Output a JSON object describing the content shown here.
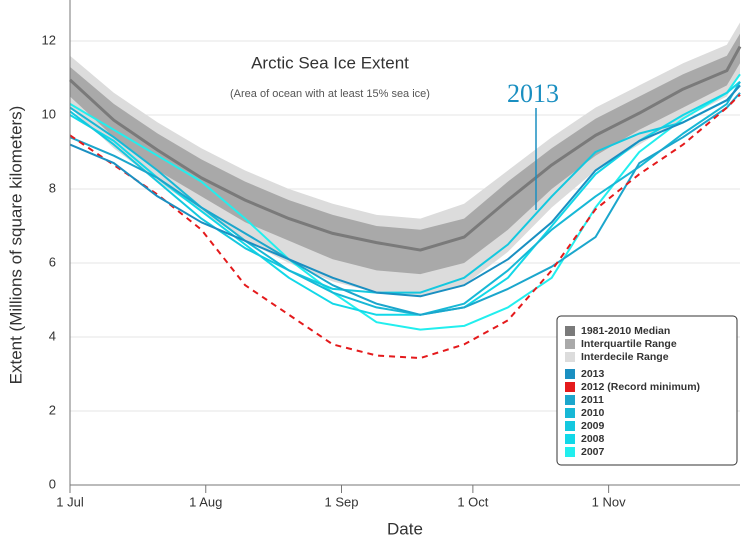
{
  "chart_data": {
    "type": "line",
    "title": "Arctic Sea Ice Extent",
    "subtitle": "(Area of ocean with at least 15% sea ice)",
    "x_label": "Date",
    "y_label": "Extent (Millions of square kilometers)",
    "annotation": "2013",
    "x": [
      0,
      10,
      20,
      30,
      40,
      50,
      60,
      70,
      80,
      90,
      100,
      110,
      120,
      130,
      140,
      150,
      153
    ],
    "xlim": [
      0,
      153
    ],
    "xticks": [
      {
        "value": 0,
        "label": "1 Jul"
      },
      {
        "value": 31,
        "label": "1 Aug"
      },
      {
        "value": 62,
        "label": "1 Sep"
      },
      {
        "value": 92,
        "label": "1 Oct"
      },
      {
        "value": 123,
        "label": "1 Nov"
      }
    ],
    "ylim": [
      0,
      13
    ],
    "yticks": [
      0,
      2,
      4,
      6,
      8,
      10,
      12
    ],
    "grid": true,
    "legend_position": "lower right",
    "bands": [
      {
        "name": "Interdecile Range",
        "color": "#dcdcdc",
        "low": [
          10.2,
          9.1,
          8.2,
          7.4,
          6.6,
          6.0,
          5.5,
          5.2,
          5.1,
          5.4,
          6.3,
          7.5,
          8.5,
          9.2,
          9.9,
          10.5,
          11.1
        ],
        "high": [
          11.6,
          10.6,
          9.8,
          9.1,
          8.5,
          8.0,
          7.6,
          7.3,
          7.2,
          7.6,
          8.5,
          9.4,
          10.2,
          10.8,
          11.4,
          11.9,
          12.5
        ]
      },
      {
        "name": "Interquartile Range",
        "color": "#a9a9a9",
        "low": [
          10.5,
          9.4,
          8.5,
          7.8,
          7.1,
          6.6,
          6.1,
          5.8,
          5.7,
          6.0,
          6.9,
          8.0,
          8.9,
          9.6,
          10.2,
          10.8,
          11.4
        ],
        "high": [
          11.3,
          10.3,
          9.5,
          8.8,
          8.2,
          7.7,
          7.3,
          7.0,
          6.9,
          7.2,
          8.2,
          9.1,
          9.9,
          10.5,
          11.1,
          11.6,
          12.2
        ]
      }
    ],
    "median": {
      "name": "1981-2010 Median",
      "color": "#7a7a7a",
      "values": [
        10.95,
        9.86,
        9.05,
        8.3,
        7.7,
        7.2,
        6.8,
        6.55,
        6.35,
        6.7,
        7.7,
        8.65,
        9.45,
        10.05,
        10.7,
        11.2,
        11.85
      ]
    },
    "series": [
      {
        "name": "2013",
        "color": "#1a8fc1",
        "values": [
          9.2,
          8.7,
          7.8,
          7.1,
          6.6,
          6.1,
          5.6,
          5.2,
          5.1,
          5.4,
          6.1,
          7.1,
          8.5,
          9.3,
          9.8,
          10.4,
          10.8
        ]
      },
      {
        "name": "2012 (Record minimum)",
        "color": "#e41a1c",
        "dashed": true,
        "values": [
          9.45,
          8.65,
          7.85,
          6.9,
          5.4,
          4.6,
          3.8,
          3.5,
          3.43,
          3.8,
          4.45,
          5.8,
          7.45,
          8.4,
          9.2,
          10.2,
          10.55
        ]
      },
      {
        "name": "2011",
        "color": "#1ba6cc",
        "values": [
          9.4,
          8.9,
          8.3,
          7.5,
          6.8,
          6.1,
          5.4,
          4.9,
          4.6,
          4.8,
          5.3,
          5.9,
          6.7,
          8.7,
          9.4,
          10.2,
          10.6
        ]
      },
      {
        "name": "2010",
        "color": "#17b8d6",
        "values": [
          10.2,
          9.4,
          8.5,
          7.5,
          6.6,
          5.8,
          5.2,
          4.8,
          4.6,
          4.9,
          5.8,
          6.9,
          7.8,
          8.6,
          9.5,
          10.3,
          10.9
        ]
      },
      {
        "name": "2009",
        "color": "#14c8df",
        "values": [
          10.1,
          9.2,
          8.2,
          7.2,
          6.4,
          5.8,
          5.3,
          5.2,
          5.2,
          5.6,
          6.5,
          7.8,
          9.0,
          9.5,
          9.8,
          10.4,
          10.8
        ]
      },
      {
        "name": "2008",
        "color": "#12d8e8",
        "values": [
          10.0,
          9.3,
          8.3,
          7.4,
          6.5,
          5.6,
          4.9,
          4.6,
          4.6,
          4.8,
          5.6,
          7.0,
          8.4,
          9.3,
          10.0,
          10.6,
          10.9
        ]
      },
      {
        "name": "2007",
        "color": "#22eeee",
        "values": [
          10.3,
          9.6,
          8.9,
          8.2,
          7.2,
          6.1,
          5.2,
          4.4,
          4.2,
          4.3,
          4.8,
          5.6,
          7.5,
          9.0,
          9.9,
          10.6,
          11.1
        ]
      }
    ]
  }
}
